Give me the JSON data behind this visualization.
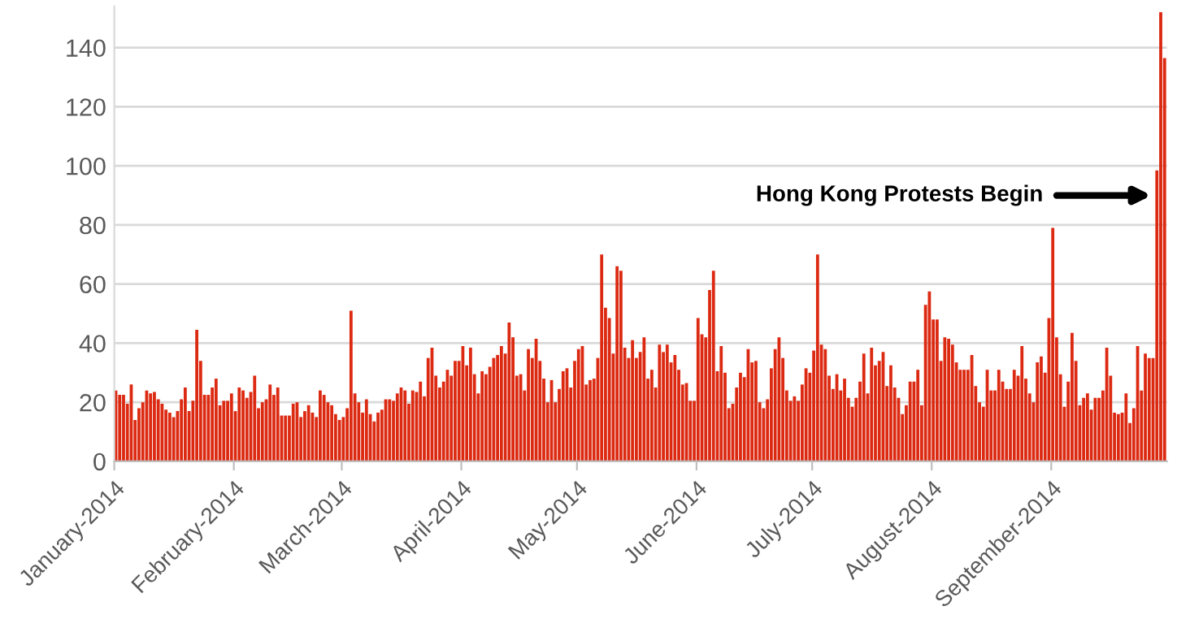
{
  "chart_data": {
    "type": "bar",
    "x": [
      "2014-01-01",
      "2014-01-02",
      "2014-01-03",
      "2014-01-04",
      "2014-01-05",
      "2014-01-06",
      "2014-01-07",
      "2014-01-08",
      "2014-01-09",
      "2014-01-10",
      "2014-01-11",
      "2014-01-12",
      "2014-01-13",
      "2014-01-14",
      "2014-01-15",
      "2014-01-16",
      "2014-01-17",
      "2014-01-18",
      "2014-01-19",
      "2014-01-20",
      "2014-01-21",
      "2014-01-22",
      "2014-01-23",
      "2014-01-24",
      "2014-01-25",
      "2014-01-26",
      "2014-01-27",
      "2014-01-28",
      "2014-01-29",
      "2014-01-30",
      "2014-01-31",
      "2014-02-01",
      "2014-02-02",
      "2014-02-03",
      "2014-02-04",
      "2014-02-05",
      "2014-02-06",
      "2014-02-07",
      "2014-02-08",
      "2014-02-09",
      "2014-02-10",
      "2014-02-11",
      "2014-02-12",
      "2014-02-13",
      "2014-02-14",
      "2014-02-15",
      "2014-02-16",
      "2014-02-17",
      "2014-02-18",
      "2014-02-19",
      "2014-02-20",
      "2014-02-21",
      "2014-02-22",
      "2014-02-23",
      "2014-02-24",
      "2014-02-25",
      "2014-02-26",
      "2014-02-27",
      "2014-02-28",
      "2014-03-01",
      "2014-03-02",
      "2014-03-03",
      "2014-03-04",
      "2014-03-05",
      "2014-03-06",
      "2014-03-07",
      "2014-03-08",
      "2014-03-09",
      "2014-03-10",
      "2014-03-11",
      "2014-03-12",
      "2014-03-13",
      "2014-03-14",
      "2014-03-15",
      "2014-03-16",
      "2014-03-17",
      "2014-03-18",
      "2014-03-19",
      "2014-03-20",
      "2014-03-21",
      "2014-03-22",
      "2014-03-23",
      "2014-03-24",
      "2014-03-25",
      "2014-03-26",
      "2014-03-27",
      "2014-03-28",
      "2014-03-29",
      "2014-03-30",
      "2014-03-31",
      "2014-04-01",
      "2014-04-02",
      "2014-04-03",
      "2014-04-04",
      "2014-04-05",
      "2014-04-06",
      "2014-04-07",
      "2014-04-08",
      "2014-04-09",
      "2014-04-10",
      "2014-04-11",
      "2014-04-12",
      "2014-04-13",
      "2014-04-14",
      "2014-04-15",
      "2014-04-16",
      "2014-04-17",
      "2014-04-18",
      "2014-04-19",
      "2014-04-20",
      "2014-04-21",
      "2014-04-22",
      "2014-04-23",
      "2014-04-24",
      "2014-04-25",
      "2014-04-26",
      "2014-04-27",
      "2014-04-28",
      "2014-04-29",
      "2014-04-30",
      "2014-05-01",
      "2014-05-02",
      "2014-05-03",
      "2014-05-04",
      "2014-05-05",
      "2014-05-06",
      "2014-05-07",
      "2014-05-08",
      "2014-05-09",
      "2014-05-10",
      "2014-05-11",
      "2014-05-12",
      "2014-05-13",
      "2014-05-14",
      "2014-05-15",
      "2014-05-16",
      "2014-05-17",
      "2014-05-18",
      "2014-05-19",
      "2014-05-20",
      "2014-05-21",
      "2014-05-22",
      "2014-05-23",
      "2014-05-24",
      "2014-05-25",
      "2014-05-26",
      "2014-05-27",
      "2014-05-28",
      "2014-05-29",
      "2014-05-30",
      "2014-05-31",
      "2014-06-01",
      "2014-06-02",
      "2014-06-03",
      "2014-06-04",
      "2014-06-05",
      "2014-06-06",
      "2014-06-07",
      "2014-06-08",
      "2014-06-09",
      "2014-06-10",
      "2014-06-11",
      "2014-06-12",
      "2014-06-13",
      "2014-06-14",
      "2014-06-15",
      "2014-06-16",
      "2014-06-17",
      "2014-06-18",
      "2014-06-19",
      "2014-06-20",
      "2014-06-21",
      "2014-06-22",
      "2014-06-23",
      "2014-06-24",
      "2014-06-25",
      "2014-06-26",
      "2014-06-27",
      "2014-06-28",
      "2014-06-29",
      "2014-06-30",
      "2014-07-01",
      "2014-07-02",
      "2014-07-03",
      "2014-07-04",
      "2014-07-05",
      "2014-07-06",
      "2014-07-07",
      "2014-07-08",
      "2014-07-09",
      "2014-07-10",
      "2014-07-11",
      "2014-07-12",
      "2014-07-13",
      "2014-07-14",
      "2014-07-15",
      "2014-07-16",
      "2014-07-17",
      "2014-07-18",
      "2014-07-19",
      "2014-07-20",
      "2014-07-21",
      "2014-07-22",
      "2014-07-23",
      "2014-07-24",
      "2014-07-25",
      "2014-07-26",
      "2014-07-27",
      "2014-07-28",
      "2014-07-29",
      "2014-07-30",
      "2014-07-31",
      "2014-08-01",
      "2014-08-02",
      "2014-08-03",
      "2014-08-04",
      "2014-08-05",
      "2014-08-06",
      "2014-08-07",
      "2014-08-08",
      "2014-08-09",
      "2014-08-10",
      "2014-08-11",
      "2014-08-12",
      "2014-08-13",
      "2014-08-14",
      "2014-08-15",
      "2014-08-16",
      "2014-08-17",
      "2014-08-18",
      "2014-08-19",
      "2014-08-20",
      "2014-08-21",
      "2014-08-22",
      "2014-08-23",
      "2014-08-24",
      "2014-08-25",
      "2014-08-26",
      "2014-08-27",
      "2014-08-28",
      "2014-08-29",
      "2014-08-30",
      "2014-08-31",
      "2014-09-01",
      "2014-09-02",
      "2014-09-03",
      "2014-09-04",
      "2014-09-05",
      "2014-09-06",
      "2014-09-07",
      "2014-09-08",
      "2014-09-09",
      "2014-09-10",
      "2014-09-11",
      "2014-09-12",
      "2014-09-13",
      "2014-09-14",
      "2014-09-15",
      "2014-09-16",
      "2014-09-17",
      "2014-09-18",
      "2014-09-19",
      "2014-09-20",
      "2014-09-21",
      "2014-09-22",
      "2014-09-23",
      "2014-09-24",
      "2014-09-25",
      "2014-09-26",
      "2014-09-27",
      "2014-09-28",
      "2014-09-29",
      "2014-09-30"
    ],
    "values": [
      24,
      22.5,
      22.5,
      19.5,
      26,
      14,
      18,
      20,
      24,
      23,
      23.5,
      21,
      19.5,
      17.5,
      16.5,
      15,
      17,
      21,
      25,
      17,
      20.5,
      44.5,
      34,
      22.5,
      22.5,
      25,
      28,
      19,
      20.5,
      20.5,
      23,
      17,
      25,
      24,
      21.5,
      23.5,
      29,
      18,
      20,
      21,
      26,
      22.5,
      25,
      15.5,
      15.5,
      15.5,
      19.5,
      20,
      15,
      17,
      19,
      16.5,
      15,
      24,
      22.5,
      20,
      19,
      16,
      14,
      15,
      18,
      51,
      23,
      20,
      16.5,
      21,
      16,
      13.5,
      16.5,
      17.5,
      21,
      21,
      20.5,
      23,
      25,
      24,
      19.5,
      24,
      23.5,
      27,
      22,
      35,
      38.5,
      29,
      25,
      27,
      31,
      29,
      34,
      34,
      39,
      32.5,
      38.5,
      29.5,
      23,
      30.5,
      29.5,
      32,
      35,
      36,
      39,
      36.5,
      47,
      42,
      29,
      29.5,
      24,
      38,
      35,
      41.5,
      34,
      28,
      20,
      27.5,
      20,
      24.5,
      30.5,
      31.5,
      25,
      34,
      38,
      39,
      26,
      27.5,
      28,
      35,
      70,
      52,
      48.5,
      36.5,
      66,
      64.5,
      38.5,
      35,
      41,
      35,
      37,
      42,
      28,
      31,
      25,
      39.5,
      37,
      39.5,
      33.5,
      36,
      31,
      26,
      26.5,
      20.5,
      20.5,
      48.5,
      43,
      42,
      58,
      64.5,
      30.5,
      39,
      30,
      18,
      19.5,
      25,
      30,
      28.5,
      38,
      33.5,
      34,
      20,
      18,
      21,
      31.5,
      38,
      42,
      35,
      24,
      20.5,
      22,
      20.5,
      26,
      31.5,
      30,
      37.5,
      70,
      39.5,
      38,
      29,
      24.5,
      29.5,
      24,
      28,
      21.5,
      18.5,
      21.5,
      27,
      36.5,
      23,
      38.5,
      32.5,
      34,
      37,
      25.5,
      32.5,
      25,
      21.5,
      16,
      19,
      27,
      27,
      31,
      19,
      53,
      57.5,
      48,
      48,
      34,
      42,
      41.5,
      39.5,
      33.5,
      31,
      31,
      31,
      36,
      25.5,
      20,
      18.5,
      31,
      24,
      24,
      31,
      27,
      24.5,
      24.5,
      31,
      29,
      39,
      28,
      23,
      20,
      33.5,
      35.5,
      30,
      48.5,
      79,
      42,
      29.5,
      18.5,
      27,
      43.5,
      34,
      19,
      21.5,
      23,
      17.5,
      21.5,
      21.5,
      24,
      38.5,
      29,
      16.5,
      16,
      16.5,
      23,
      13,
      18,
      39,
      24,
      36.5,
      35,
      35,
      98.5,
      152,
      136.5
    ],
    "color": "#dc2a12",
    "xlim": [
      "2014-01-01",
      "2014-10-01"
    ],
    "xticks": [
      {
        "value": "2014-01-01",
        "label": "January-2014"
      },
      {
        "value": "2014-02-01",
        "label": "February-2014"
      },
      {
        "value": "2014-03-01",
        "label": "March-2014"
      },
      {
        "value": "2014-04-01",
        "label": "April-2014"
      },
      {
        "value": "2014-05-01",
        "label": "May-2014"
      },
      {
        "value": "2014-06-01",
        "label": "June-2014"
      },
      {
        "value": "2014-07-01",
        "label": "July-2014"
      },
      {
        "value": "2014-08-01",
        "label": "August-2014"
      },
      {
        "value": "2014-09-01",
        "label": "September-2014"
      }
    ],
    "ylim": [
      0,
      154
    ],
    "yticks": [
      0,
      20,
      40,
      60,
      80,
      100,
      120,
      140
    ],
    "grid": "y",
    "annotations": [
      {
        "text": "Hong Kong Protests Begin",
        "x": "2014-09-27",
        "y": 90
      }
    ]
  }
}
